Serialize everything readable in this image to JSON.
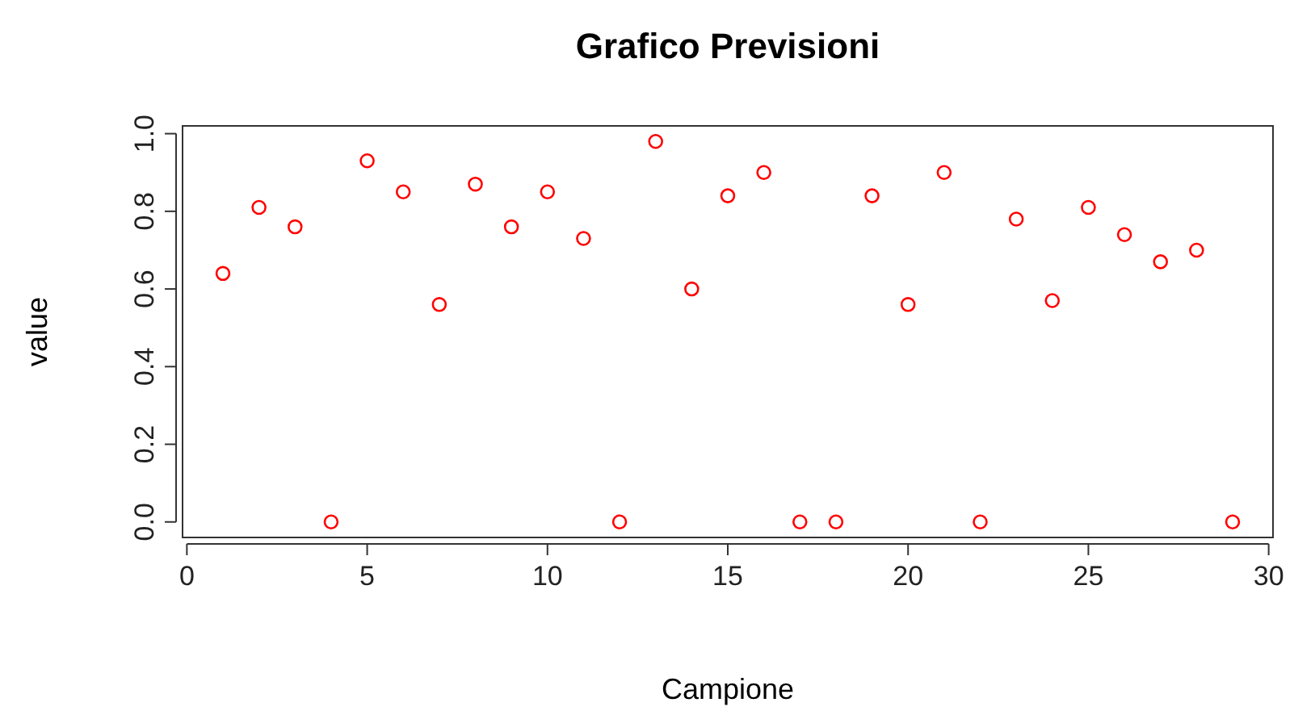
{
  "chart_data": {
    "type": "scatter",
    "title": "Grafico Previsioni",
    "xlabel": "Campione",
    "ylabel": "value",
    "x": [
      1,
      2,
      3,
      4,
      5,
      6,
      7,
      8,
      9,
      10,
      11,
      12,
      13,
      14,
      15,
      16,
      17,
      18,
      19,
      20,
      21,
      22,
      23,
      24,
      25,
      26,
      27,
      28,
      29
    ],
    "series": [
      {
        "color": "#ff0000",
        "values": [
          0.64,
          0.81,
          0.76,
          0,
          0.93,
          0.85,
          0.56,
          0.87,
          0.76,
          0.85,
          0.73,
          0,
          0.98,
          0.6,
          0.84,
          0.9,
          0,
          0,
          0.84,
          0.56,
          0.9,
          0,
          0.78,
          0.57,
          0.81,
          0.74,
          0.67,
          0.7,
          0
        ]
      }
    ],
    "xlim": [
      -0.12,
      30.12
    ],
    "ylim": [
      -0.04,
      1.02
    ],
    "xticks": [
      0,
      5,
      10,
      15,
      20,
      25,
      30
    ],
    "yticks": [
      {
        "value": 0,
        "label": "0.0"
      },
      {
        "value": 0.2,
        "label": "0.2"
      },
      {
        "value": 0.4,
        "label": "0.4"
      },
      {
        "value": 0.6,
        "label": "0.6"
      },
      {
        "value": 0.8,
        "label": "0.8"
      },
      {
        "value": 1,
        "label": "1.0"
      }
    ],
    "marker": "circle"
  }
}
